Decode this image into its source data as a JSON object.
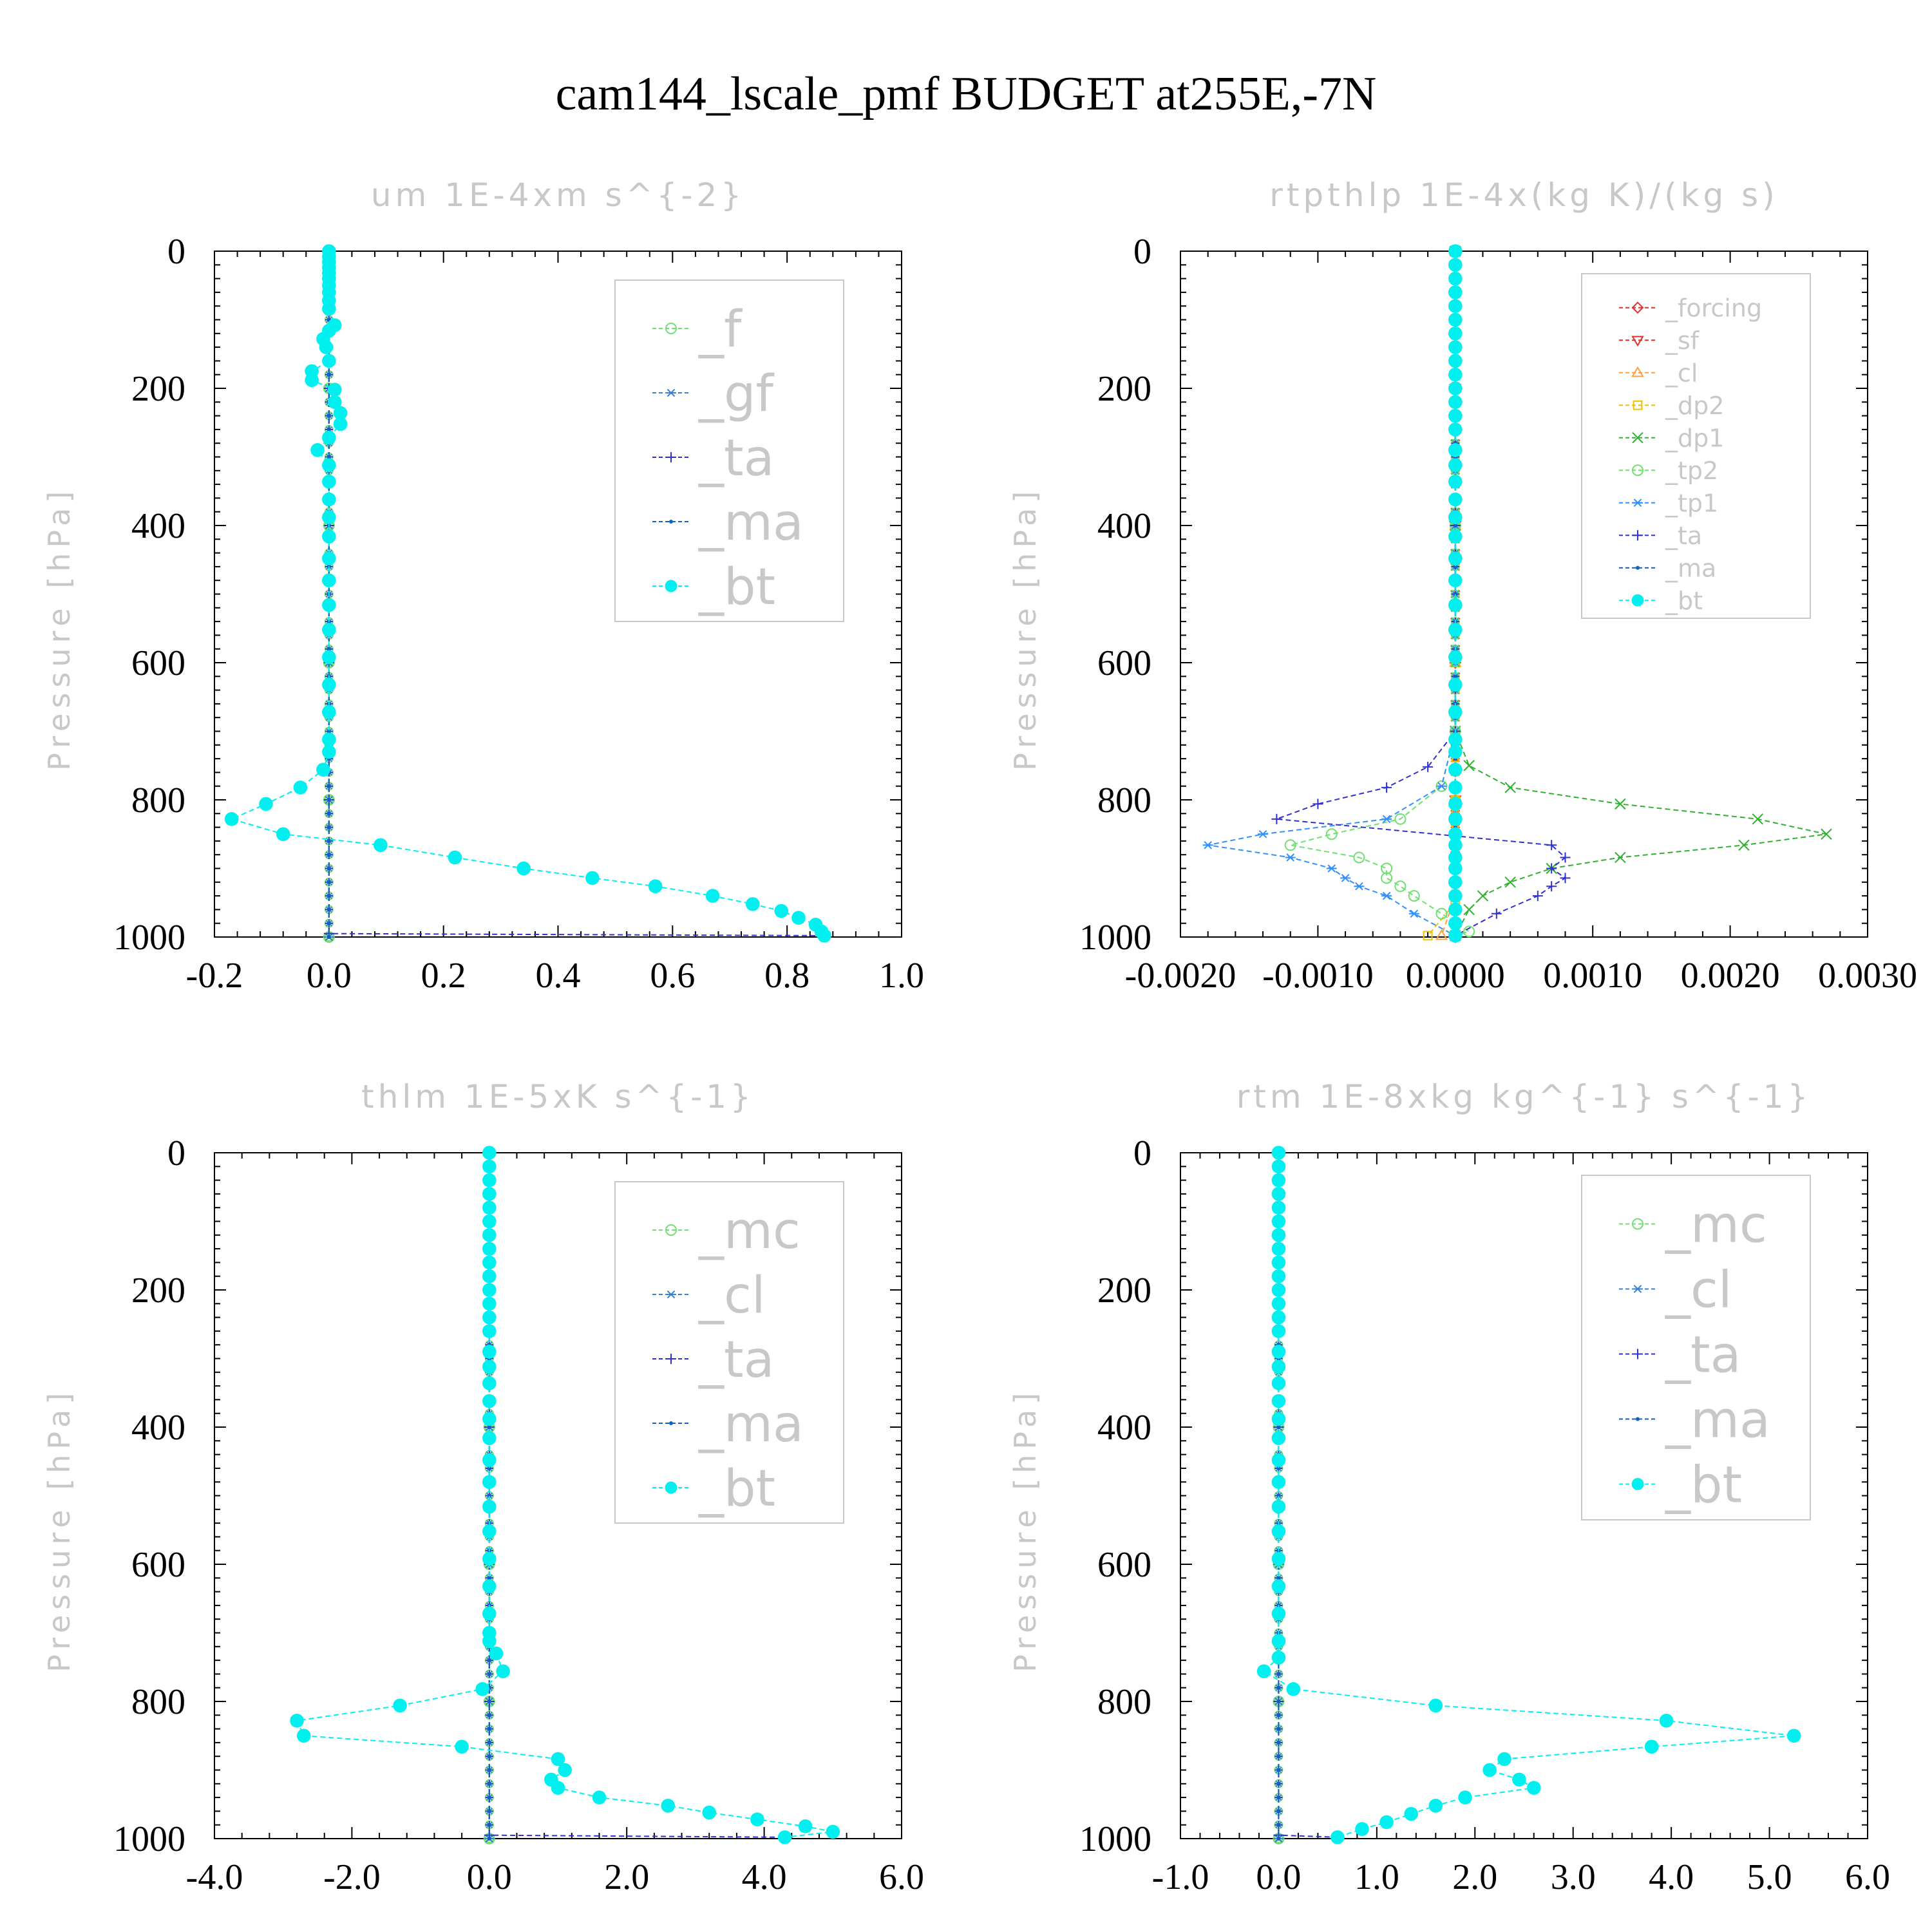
{
  "suptitle": "cam144_lscale_pmf  BUDGET at255E,-7N",
  "colors": {
    "forcing": "#e0302a",
    "sf": "#e0302a",
    "cl_orange": "#ffa040",
    "dp2": "#f0c000",
    "dp1": "#30b030",
    "tp2": "#70e070",
    "tp1": "#3090ff",
    "f": "#70e070",
    "gf": "#3a7fd0",
    "mc": "#70e070",
    "cl": "#3a7fd0",
    "ta": "#3030d0",
    "ma": "#1060c0",
    "bt": "#00f0f0"
  },
  "chart_data": [
    {
      "type": "line",
      "title": "um  1E-4xm s^{-2}",
      "ylabel": "Pressure [hPa]",
      "xlabel": "",
      "xlim": [
        -0.2,
        1.0
      ],
      "ylim": [
        1000,
        0
      ],
      "xticks": [
        "-0.2",
        "0.0",
        "0.2",
        "0.4",
        "0.6",
        "0.8",
        "1.0"
      ],
      "xtick_values": [
        -0.2,
        0.0,
        0.2,
        0.4,
        0.6,
        0.8,
        1.0
      ],
      "yticks": [
        "0",
        "200",
        "400",
        "600",
        "800",
        "1000"
      ],
      "ytick_values": [
        0,
        200,
        400,
        600,
        800,
        1000
      ],
      "grid": false,
      "legend_position": "top-right",
      "series": [
        {
          "name": "_f",
          "key": "f",
          "marker": "circle-open",
          "x": [
            0.0,
            0.0,
            0.0,
            0.0,
            0.0,
            0.0
          ],
          "y": [
            0,
            200,
            400,
            600,
            800,
            1000
          ]
        },
        {
          "name": "_gf",
          "key": "gf",
          "marker": "asterisk",
          "x": [
            0.0,
            0.0,
            0.0,
            0.0,
            0.0,
            0.0
          ],
          "y": [
            0,
            200,
            400,
            600,
            800,
            1000
          ]
        },
        {
          "name": "_ta",
          "key": "ta",
          "marker": "plus",
          "x": [
            0.0,
            0.0,
            0.0,
            0.0,
            0.0,
            0.0,
            0.86
          ],
          "y": [
            0,
            200,
            400,
            600,
            800,
            995,
            998
          ]
        },
        {
          "name": "_ma",
          "key": "ma",
          "marker": "dot",
          "x": [
            0.0,
            0.0,
            0.0,
            0.0,
            0.0,
            0.0
          ],
          "y": [
            0,
            200,
            400,
            600,
            800,
            1000
          ]
        },
        {
          "name": "_bt",
          "key": "bt",
          "marker": "filled-circle",
          "x": [
            0.0,
            0.0,
            0.0,
            0.0,
            0.0,
            0.0,
            0.0,
            0.0,
            0.0,
            0.0,
            0.01,
            0.0,
            -0.01,
            -0.005,
            0.0,
            -0.03,
            -0.03,
            0.01,
            0.01,
            0.02,
            0.02,
            0.0,
            -0.02,
            0.0,
            0.0,
            0.0,
            0.0,
            0.0,
            0.0,
            0.0,
            0.0,
            0.0,
            0.0,
            0.0,
            0.0,
            0.0,
            0.0,
            -0.01,
            -0.05,
            -0.11,
            -0.17,
            -0.08,
            0.09,
            0.22,
            0.34,
            0.46,
            0.57,
            0.67,
            0.74,
            0.79,
            0.82,
            0.85,
            0.86,
            0.865
          ],
          "y": [
            0,
            8,
            16,
            24,
            32,
            40,
            50,
            60,
            72,
            84,
            108,
            116,
            128,
            140,
            160,
            175,
            188,
            202,
            220,
            236,
            252,
            272,
            290,
            312,
            336,
            362,
            388,
            416,
            448,
            480,
            516,
            552,
            592,
            632,
            672,
            712,
            730,
            756,
            782,
            806,
            828,
            850,
            866,
            884,
            900,
            914,
            926,
            940,
            952,
            962,
            972,
            982,
            992,
            998
          ]
        }
      ]
    },
    {
      "type": "line",
      "title": "rtpthlp  1E-4x(kg K)/(kg s)",
      "ylabel": "Pressure [hPa]",
      "xlabel": "",
      "xlim": [
        -0.002,
        0.003
      ],
      "ylim": [
        1000,
        0
      ],
      "xticks": [
        "-0.0020",
        "-0.0010",
        "0.0000",
        "0.0010",
        "0.0020",
        "0.0030"
      ],
      "xtick_values": [
        -0.002,
        -0.001,
        0.0,
        0.001,
        0.002,
        0.003
      ],
      "yticks": [
        "0",
        "200",
        "400",
        "600",
        "800",
        "1000"
      ],
      "ytick_values": [
        0,
        200,
        400,
        600,
        800,
        1000
      ],
      "grid": false,
      "legend_position": "top-right",
      "series": [
        {
          "name": "_forcing",
          "key": "forcing",
          "marker": "diamond-open",
          "x": [
            0.0,
            0.0,
            0.0,
            0.0,
            0.0,
            0.0
          ],
          "y": [
            0,
            200,
            400,
            600,
            800,
            1000
          ]
        },
        {
          "name": "_sf",
          "key": "sf",
          "marker": "triangle-down",
          "x": [
            0.0,
            0.0,
            0.0,
            0.0,
            0.0,
            0.0
          ],
          "y": [
            0,
            200,
            400,
            600,
            800,
            1000
          ]
        },
        {
          "name": "_cl",
          "key": "cl_orange",
          "marker": "triangle-up",
          "x": [
            0.0,
            0.0,
            0.0,
            0.0,
            0.0,
            0.0,
            -0.0001
          ],
          "y": [
            0,
            200,
            400,
            600,
            800,
            940,
            998
          ]
        },
        {
          "name": "_dp2",
          "key": "dp2",
          "marker": "square-open",
          "x": [
            0.0,
            0.0,
            0.0,
            0.0,
            0.0,
            0.0,
            0.0,
            -0.0002
          ],
          "y": [
            0,
            200,
            400,
            600,
            800,
            850,
            950,
            998
          ]
        },
        {
          "name": "_dp1",
          "key": "dp1",
          "marker": "x",
          "x": [
            0.0,
            0.0,
            0.0,
            0.0001,
            0.0004,
            0.0012,
            0.0022,
            0.0027,
            0.0021,
            0.0012,
            0.0007,
            0.0004,
            0.0002,
            0.0001,
            0.0
          ],
          "y": [
            0,
            400,
            700,
            750,
            782,
            806,
            828,
            850,
            866,
            884,
            900,
            920,
            940,
            960,
            998
          ]
        },
        {
          "name": "_tp2",
          "key": "tp2",
          "marker": "circle-open",
          "x": [
            0.0,
            0.0,
            0.0,
            -0.0001,
            -0.0004,
            -0.0009,
            -0.0012,
            -0.0007,
            -0.0005,
            -0.0005,
            -0.0004,
            -0.0003,
            -0.0001,
            0.0001,
            0.0
          ],
          "y": [
            0,
            400,
            700,
            780,
            828,
            850,
            866,
            884,
            900,
            914,
            926,
            940,
            966,
            992,
            998
          ]
        },
        {
          "name": "_tp1",
          "key": "tp1",
          "marker": "asterisk",
          "x": [
            0.0,
            0.0,
            0.0,
            -0.0001,
            -0.0005,
            -0.0014,
            -0.0018,
            -0.0012,
            -0.0009,
            -0.0008,
            -0.0007,
            -0.0005,
            -0.0003,
            0.0
          ],
          "y": [
            0,
            400,
            700,
            780,
            828,
            850,
            866,
            884,
            900,
            914,
            926,
            940,
            966,
            998
          ]
        },
        {
          "name": "_ta",
          "key": "ta",
          "marker": "plus",
          "x": [
            0.0,
            0.0,
            0.0,
            -0.0002,
            -0.0005,
            -0.001,
            -0.0013,
            0.0007,
            0.0008,
            0.0007,
            0.0008,
            0.0007,
            0.0006,
            0.0003,
            0.0
          ],
          "y": [
            0,
            400,
            700,
            752,
            782,
            806,
            828,
            866,
            884,
            900,
            914,
            926,
            940,
            966,
            998
          ]
        },
        {
          "name": "_ma",
          "key": "ma",
          "marker": "dot",
          "x": [
            0.0,
            0.0,
            0.0,
            0.0,
            0.0,
            0.0
          ],
          "y": [
            0,
            200,
            400,
            600,
            800,
            1000
          ]
        },
        {
          "name": "_bt",
          "key": "bt",
          "marker": "filled-circle",
          "x": [
            0.0,
            0.0,
            0.0,
            0.0,
            0.0,
            0.0,
            0.0,
            0.0,
            0.0,
            0.0,
            0.0,
            0.0,
            0.0,
            0.0,
            0.0,
            0.0,
            0.0,
            0.0,
            0.0,
            0.0,
            0.0,
            0.0,
            0.0,
            0.0,
            0.0,
            0.0,
            0.0,
            0.0,
            0.0,
            0.0,
            0.0,
            0.0,
            0.0,
            0.0,
            0.0,
            0.0,
            0.0,
            0.0,
            0.0,
            0.0,
            0.0,
            0.0
          ],
          "y": [
            0,
            20,
            40,
            60,
            80,
            100,
            120,
            140,
            160,
            180,
            200,
            220,
            240,
            260,
            290,
            312,
            336,
            362,
            388,
            416,
            448,
            480,
            516,
            552,
            592,
            632,
            672,
            712,
            730,
            756,
            782,
            806,
            828,
            850,
            866,
            884,
            900,
            920,
            940,
            960,
            980,
            998
          ]
        }
      ]
    },
    {
      "type": "line",
      "title": "thlm  1E-5xK s^{-1}",
      "ylabel": "Pressure [hPa]",
      "xlabel": "",
      "xlim": [
        -4.0,
        6.0
      ],
      "ylim": [
        1000,
        0
      ],
      "xticks": [
        "-4.0",
        "-2.0",
        "0.0",
        "2.0",
        "4.0",
        "6.0"
      ],
      "xtick_values": [
        -4.0,
        -2.0,
        0.0,
        2.0,
        4.0,
        6.0
      ],
      "yticks": [
        "0",
        "200",
        "400",
        "600",
        "800",
        "1000"
      ],
      "ytick_values": [
        0,
        200,
        400,
        600,
        800,
        1000
      ],
      "grid": false,
      "legend_position": "top-right",
      "series": [
        {
          "name": "_mc",
          "key": "mc",
          "marker": "circle-open",
          "x": [
            0.0,
            0.0,
            0.0,
            0.0,
            0.0,
            0.0
          ],
          "y": [
            0,
            200,
            400,
            600,
            800,
            1000
          ]
        },
        {
          "name": "_cl",
          "key": "cl",
          "marker": "asterisk",
          "x": [
            0.0,
            0.0,
            0.0,
            0.0,
            0.0,
            0.0
          ],
          "y": [
            0,
            200,
            400,
            600,
            800,
            1000
          ]
        },
        {
          "name": "_ta",
          "key": "ta",
          "marker": "plus",
          "x": [
            0.0,
            0.0,
            0.0,
            0.0,
            0.0,
            0.0,
            4.3
          ],
          "y": [
            0,
            200,
            400,
            600,
            800,
            995,
            998
          ]
        },
        {
          "name": "_ma",
          "key": "ma",
          "marker": "dot",
          "x": [
            0.0,
            0.0,
            0.0,
            0.0,
            0.0,
            0.0
          ],
          "y": [
            0,
            200,
            400,
            600,
            800,
            1000
          ]
        },
        {
          "name": "_bt",
          "key": "bt",
          "marker": "filled-circle",
          "x": [
            0.0,
            0.0,
            0.0,
            0.0,
            0.0,
            0.0,
            0.0,
            0.0,
            0.0,
            0.0,
            0.0,
            0.0,
            0.0,
            0.0,
            0.0,
            0.0,
            0.0,
            0.0,
            0.0,
            0.0,
            0.0,
            0.0,
            0.0,
            0.0,
            0.0,
            0.0,
            0.0,
            0.0,
            0.0,
            0.1,
            0.2,
            -0.1,
            -1.3,
            -2.8,
            -2.7,
            -0.4,
            1.0,
            1.1,
            0.9,
            1.0,
            1.6,
            2.6,
            3.2,
            3.9,
            4.6,
            5.0,
            4.3
          ],
          "y": [
            0,
            20,
            40,
            60,
            80,
            100,
            120,
            140,
            160,
            180,
            200,
            220,
            240,
            260,
            290,
            312,
            336,
            362,
            388,
            416,
            448,
            480,
            516,
            552,
            592,
            632,
            672,
            700,
            712,
            730,
            756,
            782,
            806,
            828,
            850,
            866,
            884,
            900,
            914,
            926,
            940,
            952,
            962,
            972,
            982,
            990,
            998
          ]
        }
      ]
    },
    {
      "type": "line",
      "title": "rtm  1E-8xkg kg^{-1} s^{-1}",
      "ylabel": "Pressure [hPa]",
      "xlabel": "",
      "xlim": [
        -1.0,
        6.0
      ],
      "ylim": [
        1000,
        0
      ],
      "xticks": [
        "-1.0",
        "0.0",
        "1.0",
        "2.0",
        "3.0",
        "4.0",
        "5.0",
        "6.0"
      ],
      "xtick_values": [
        -1.0,
        0.0,
        1.0,
        2.0,
        3.0,
        4.0,
        5.0,
        6.0
      ],
      "yticks": [
        "0",
        "200",
        "400",
        "600",
        "800",
        "1000"
      ],
      "ytick_values": [
        0,
        200,
        400,
        600,
        800,
        1000
      ],
      "grid": false,
      "legend_position": "top-right",
      "series": [
        {
          "name": "_mc",
          "key": "mc",
          "marker": "circle-open",
          "x": [
            0.0,
            0.0,
            0.0,
            0.0,
            0.0,
            0.0
          ],
          "y": [
            0,
            200,
            400,
            600,
            800,
            1000
          ]
        },
        {
          "name": "_cl",
          "key": "cl",
          "marker": "asterisk",
          "x": [
            0.0,
            0.0,
            0.0,
            0.0,
            0.0,
            0.0
          ],
          "y": [
            0,
            200,
            400,
            600,
            800,
            1000
          ]
        },
        {
          "name": "_ta",
          "key": "ta",
          "marker": "plus",
          "x": [
            0.0,
            0.0,
            0.0,
            0.0,
            0.0,
            0.0,
            0.6
          ],
          "y": [
            0,
            200,
            400,
            600,
            800,
            995,
            998
          ]
        },
        {
          "name": "_ma",
          "key": "ma",
          "marker": "dot",
          "x": [
            0.0,
            0.0,
            0.0,
            0.0,
            0.0,
            0.0
          ],
          "y": [
            0,
            200,
            400,
            600,
            800,
            1000
          ]
        },
        {
          "name": "_bt",
          "key": "bt",
          "marker": "filled-circle",
          "x": [
            0.0,
            0.0,
            0.0,
            0.0,
            0.0,
            0.0,
            0.0,
            0.0,
            0.0,
            0.0,
            0.0,
            0.0,
            0.0,
            0.0,
            0.0,
            0.0,
            0.0,
            0.0,
            0.0,
            0.0,
            0.0,
            0.0,
            0.0,
            0.0,
            0.0,
            0.0,
            0.0,
            0.0,
            0.0,
            -0.15,
            0.15,
            1.6,
            3.95,
            5.25,
            3.8,
            2.3,
            2.15,
            2.45,
            2.6,
            1.9,
            1.6,
            1.35,
            1.1,
            0.85,
            0.6
          ],
          "y": [
            0,
            20,
            40,
            60,
            80,
            100,
            120,
            140,
            160,
            180,
            200,
            220,
            240,
            260,
            290,
            312,
            336,
            362,
            388,
            416,
            448,
            480,
            516,
            552,
            592,
            632,
            672,
            712,
            736,
            756,
            782,
            806,
            828,
            850,
            866,
            884,
            900,
            914,
            926,
            940,
            952,
            964,
            976,
            986,
            998
          ]
        }
      ]
    }
  ]
}
